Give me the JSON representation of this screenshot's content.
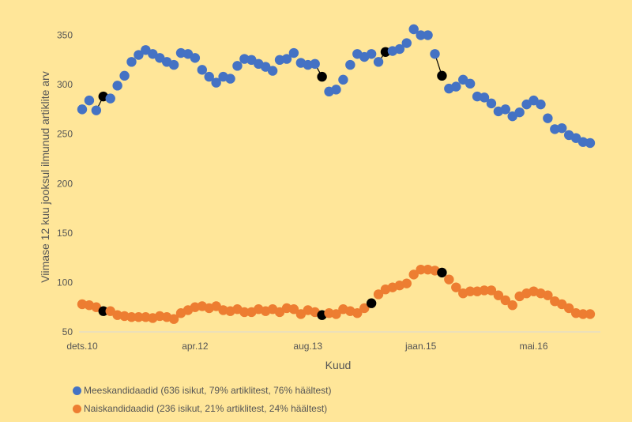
{
  "chart_data": {
    "type": "scatter",
    "ylabel": "Viimase 12 kuu jooksul ilmunud artiklite arv",
    "xlabel": "Kuud",
    "x_tick_labels": [
      "dets.10",
      "apr.12",
      "aug.13",
      "jaan.15",
      "mai.16"
    ],
    "y_ticks": [
      50,
      100,
      150,
      200,
      250,
      300,
      350
    ],
    "ylim": [
      50,
      360
    ],
    "grid": "none",
    "legend_position": "bottom-left",
    "series": [
      {
        "name": "Meeskandidaadid (636 isikut, 79% artiklitest, 76% häältest)",
        "color": "#4472c4",
        "values": [
          275,
          284,
          274,
          288,
          286,
          299,
          309,
          323,
          330,
          335,
          331,
          327,
          323,
          320,
          332,
          331,
          327,
          315,
          308,
          302,
          308,
          306,
          319,
          326,
          325,
          321,
          318,
          314,
          325,
          326,
          332,
          322,
          320,
          321,
          308,
          293,
          295,
          305,
          320,
          331,
          328,
          331,
          323,
          333,
          334,
          336,
          342,
          356,
          350,
          350,
          331,
          309,
          296,
          298,
          305,
          301,
          288,
          287,
          281,
          273,
          275,
          268,
          272,
          280,
          284,
          280,
          266,
          255,
          256,
          249,
          246,
          242,
          241
        ],
        "highlight_indices": [
          3,
          34,
          43,
          51
        ]
      },
      {
        "name": "Naiskandidaadid (236 isikut, 21% artiklitest, 24% häältest)",
        "color": "#ed7d31",
        "values": [
          78,
          77,
          75,
          71,
          71,
          67,
          66,
          65,
          65,
          65,
          64,
          66,
          65,
          63,
          69,
          72,
          75,
          76,
          74,
          76,
          72,
          71,
          73,
          70,
          70,
          73,
          71,
          73,
          70,
          74,
          73,
          68,
          72,
          70,
          67,
          69,
          68,
          73,
          71,
          69,
          74,
          79,
          88,
          93,
          95,
          97,
          99,
          108,
          113,
          113,
          112,
          110,
          103,
          95,
          89,
          91,
          91,
          92,
          92,
          87,
          82,
          77,
          86,
          89,
          91,
          89,
          87,
          81,
          78,
          74,
          69,
          68,
          68
        ],
        "highlight_indices": [
          3,
          34,
          41,
          51
        ]
      }
    ]
  }
}
